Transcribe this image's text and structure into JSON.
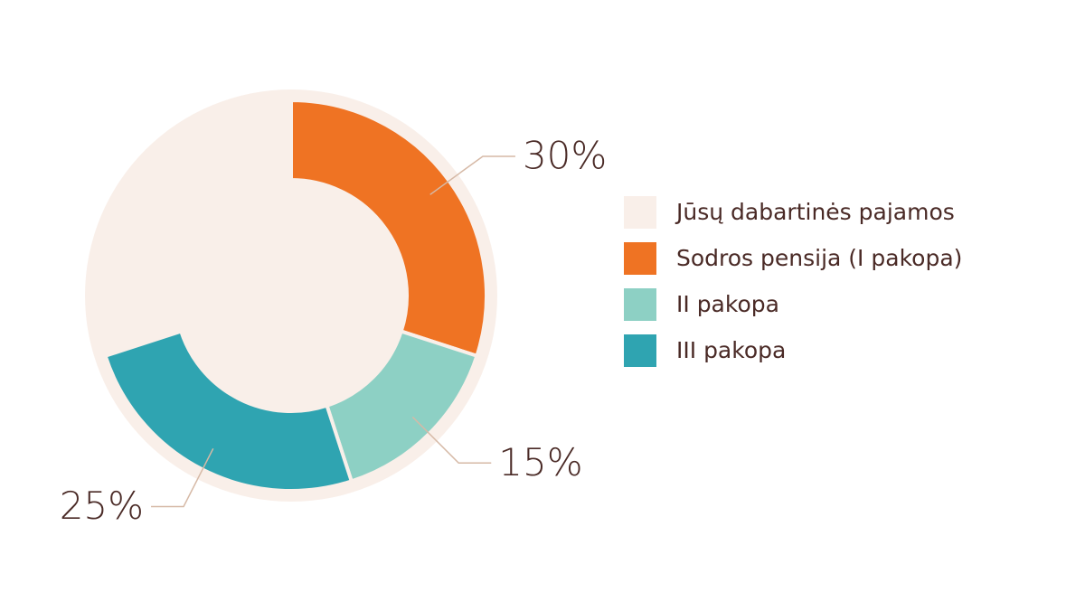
{
  "chart_data": {
    "type": "pie",
    "categories": [
      "Jūsų dabartinės pajamos",
      "Sodros pensija (I pakopa)",
      "II pakopa",
      "III pakopa"
    ],
    "values": [
      30,
      30,
      15,
      25
    ],
    "value_labels": [
      null,
      "30%",
      "15%",
      "25%"
    ],
    "colors": [
      "#f9efe9",
      "#ef7323",
      "#8dd0c4",
      "#2fa4b1"
    ],
    "legend": "right"
  }
}
